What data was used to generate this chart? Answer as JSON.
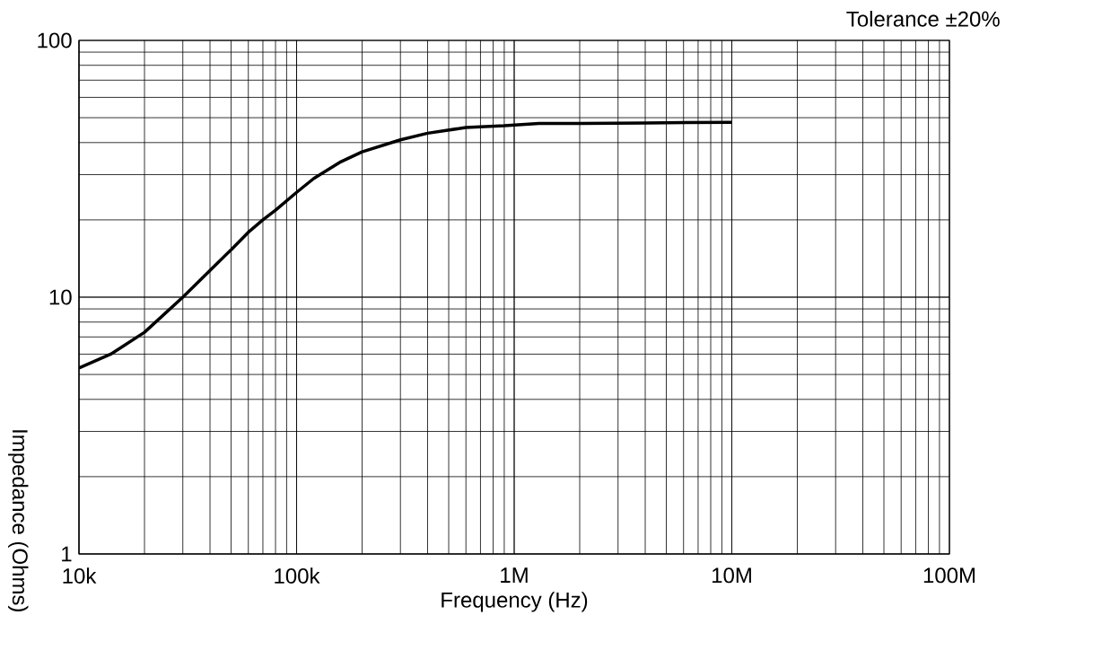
{
  "chart_data": {
    "type": "line",
    "xlabel": "Frequency (Hz)",
    "ylabel": "Impedance (Ohms)",
    "annotations": [
      "Tolerance ±20%"
    ],
    "x": [
      10000,
      14000,
      20000,
      30000,
      40000,
      50000,
      60000,
      70000,
      80000,
      100000,
      120000,
      160000,
      200000,
      300000,
      400000,
      600000,
      900000,
      1300000,
      2000000,
      4000000,
      10000000
    ],
    "series": [
      {
        "color": "#000000",
        "values": [
          5.3,
          6.0,
          7.3,
          10,
          12.7,
          15.3,
          17.9,
          20,
          21.8,
          25.6,
          29,
          33.7,
          36.8,
          41,
          43.5,
          45.8,
          46.5,
          47.5,
          47.5,
          47.7,
          48
        ]
      }
    ],
    "xlim": [
      10000,
      100000000
    ],
    "ylim": [
      1,
      100
    ],
    "xticks": [
      {
        "value": 10000,
        "label": "10k"
      },
      {
        "value": 100000,
        "label": "100k"
      },
      {
        "value": 1000000,
        "label": "1M"
      },
      {
        "value": 10000000,
        "label": "10M"
      },
      {
        "value": 100000000,
        "label": "100M"
      }
    ],
    "yticks": [
      1,
      10,
      100
    ],
    "log": "xy",
    "grid": true
  }
}
